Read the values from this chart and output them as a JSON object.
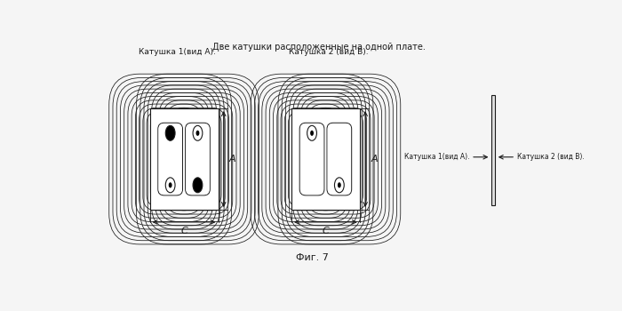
{
  "title": "Две катушки расположенные на одной плате.",
  "fig_label": "Фиг. 7",
  "coil1_label": "Катушка 1(вид А).",
  "coil2_label": "Катушка 2 (вид В).",
  "side_label1": "Катушка 1(вид А).",
  "side_label2": "Катушка 2 (вид В).",
  "bg_color": "#f5f5f5",
  "line_color": "#1a1a1a",
  "n_turns": 14
}
